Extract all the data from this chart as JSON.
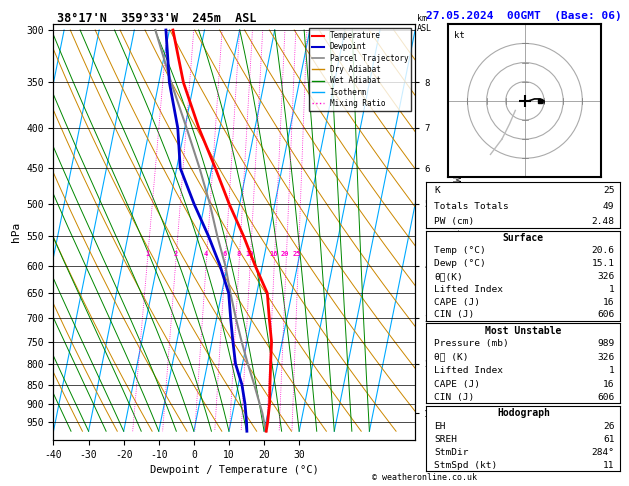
{
  "title_left": "38°17'N  359°33'W  245m  ASL",
  "title_right": "27.05.2024  00GMT  (Base: 06)",
  "xlabel": "Dewpoint / Temperature (°C)",
  "ylabel_left": "hPa",
  "temp_ticks": [
    -40,
    -30,
    -20,
    -10,
    0,
    10,
    20,
    30
  ],
  "pressure_levels": [
    300,
    350,
    400,
    450,
    500,
    550,
    600,
    650,
    700,
    750,
    800,
    850,
    900,
    950
  ],
  "temperature_profile_p": [
    975,
    950,
    900,
    850,
    800,
    750,
    700,
    650,
    600,
    550,
    500,
    450,
    400,
    350,
    300
  ],
  "temperature_profile_t": [
    20.6,
    20.5,
    20.0,
    19.0,
    18.0,
    17.0,
    15.0,
    13.0,
    8.0,
    3.0,
    -3.0,
    -9.0,
    -16.0,
    -23.0,
    -29.0
  ],
  "dewpoint_profile_p": [
    975,
    950,
    900,
    850,
    800,
    750,
    700,
    650,
    600,
    550,
    500,
    450,
    400,
    350,
    300
  ],
  "dewpoint_profile_t": [
    15.1,
    14.5,
    13.0,
    11.0,
    8.0,
    6.0,
    4.0,
    2.0,
    -2.0,
    -7.0,
    -13.0,
    -19.0,
    -22.0,
    -27.0,
    -31.0
  ],
  "parcel_profile_p": [
    975,
    950,
    925,
    900,
    850,
    800,
    750,
    700,
    650,
    600,
    550,
    500,
    450,
    400,
    350,
    300
  ],
  "parcel_profile_t": [
    20.6,
    19.5,
    18.5,
    17.2,
    14.5,
    11.5,
    8.5,
    5.5,
    2.5,
    -0.5,
    -4.5,
    -8.5,
    -13.5,
    -19.5,
    -26.5,
    -34.0
  ],
  "lcl_pressure": 925,
  "color_temp": "#ff0000",
  "color_dewp": "#0000cc",
  "color_parcel": "#888888",
  "color_dry_adiabat": "#cc8800",
  "color_wet_adiabat": "#008800",
  "color_isotherm": "#00aaff",
  "color_mix_ratio": "#ff00cc",
  "background": "#ffffff",
  "P_max": 975,
  "P_min": 300,
  "T_min": -40,
  "T_max": 40,
  "SKEW": 45,
  "stats": {
    "K": 25,
    "Totals_Totals": 49,
    "PW_cm": 2.48,
    "Surface_Temp": 20.6,
    "Surface_Dewp": 15.1,
    "Surface_theta_e": 326,
    "Surface_LI": 1,
    "Surface_CAPE": 16,
    "Surface_CIN": 606,
    "MU_Pressure": 989,
    "MU_theta_e": 326,
    "MU_LI": 1,
    "MU_CAPE": 16,
    "MU_CIN": 606,
    "EH": 26,
    "SREH": 61,
    "StmDir": 284,
    "StmSpd_kt": 11
  }
}
